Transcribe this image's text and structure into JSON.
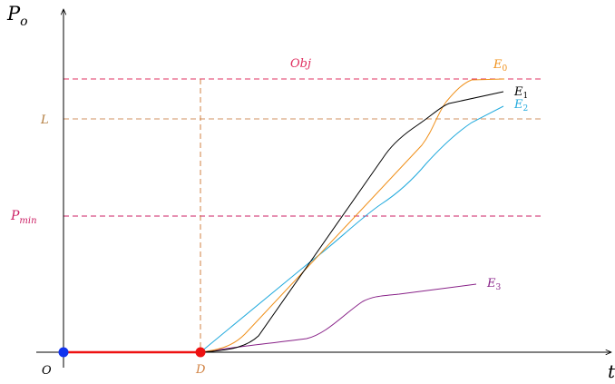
{
  "axes": {
    "y_label_main": "P",
    "y_label_sub": "o",
    "x_label": "t",
    "origin_label": "O"
  },
  "labels": {
    "obj": "Obj",
    "l": "L",
    "pmin_main": "P",
    "pmin_sub": "min",
    "d": "D"
  },
  "curves": {
    "e0": {
      "main": "E",
      "sub": "0"
    },
    "e1": {
      "main": "E",
      "sub": "1"
    },
    "e2": {
      "main": "E",
      "sub": "2"
    },
    "e3": {
      "main": "E",
      "sub": "3"
    }
  },
  "colors": {
    "obj_line": "#e03060",
    "l_line": "#d09060",
    "pmin_line": "#cc2266",
    "d_line": "#d08040",
    "e0": "#f0901a",
    "e1": "#000000",
    "e2": "#22aadd",
    "e3": "#882288",
    "segment": "#ee1111",
    "origin_dot": "#1133ee",
    "d_dot": "#ee1111"
  }
}
